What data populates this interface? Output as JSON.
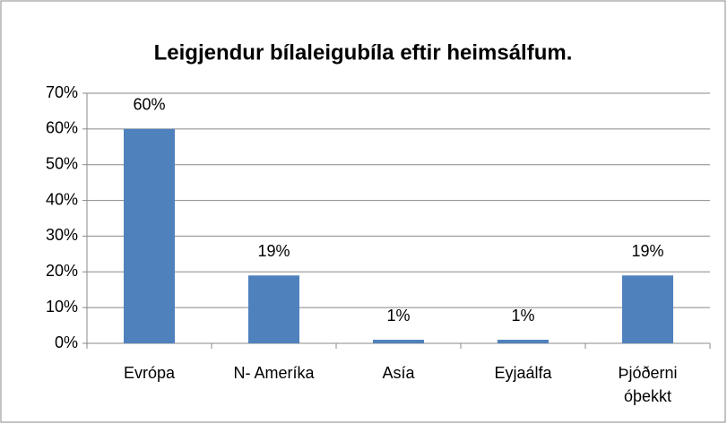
{
  "chart_data": {
    "type": "bar",
    "title": "Leigjendur bílaleigubíla eftir heimsálfum.",
    "categories": [
      "Evrópa",
      "N- Ameríka",
      "Asía",
      "Eyjaálfa",
      "Þjóðerni óþekkt"
    ],
    "values": [
      60,
      19,
      1,
      1,
      19
    ],
    "value_labels": [
      "60%",
      "19%",
      "1%",
      "1%",
      "19%"
    ],
    "color": "#4f81bd",
    "ylim": [
      0,
      70
    ],
    "yticks": [
      {
        "value": 0,
        "label": "0%"
      },
      {
        "value": 10,
        "label": "10%"
      },
      {
        "value": 20,
        "label": "20%"
      },
      {
        "value": 30,
        "label": "30%"
      },
      {
        "value": 40,
        "label": "40%"
      },
      {
        "value": 50,
        "label": "50%"
      },
      {
        "value": 60,
        "label": "60%"
      },
      {
        "value": 70,
        "label": "70%"
      }
    ],
    "grid": true
  }
}
